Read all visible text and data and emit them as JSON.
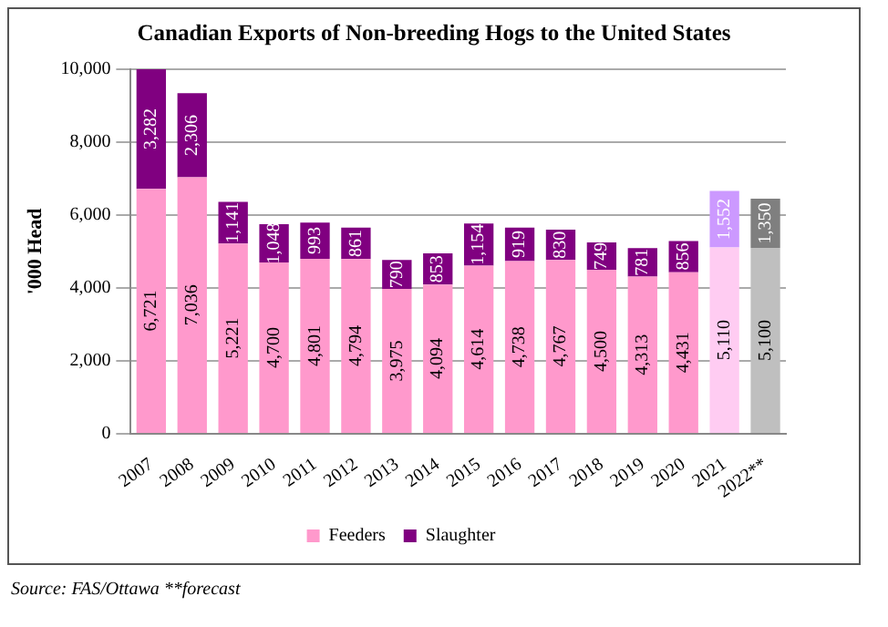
{
  "chart_data": {
    "type": "bar",
    "title": "Canadian Exports of Non-breeding Hogs to the United States",
    "ylabel": "'000 Head",
    "categories": [
      "2007",
      "2008",
      "2009",
      "2010",
      "2011",
      "2012",
      "2013",
      "2014",
      "2015",
      "2016",
      "2017",
      "2018",
      "2019",
      "2020",
      "2021",
      "2022**"
    ],
    "stacked": true,
    "series": [
      {
        "name": "Feeders",
        "color": "#ff99cc",
        "colors": [
          "#ff99cc",
          "#ff99cc",
          "#ff99cc",
          "#ff99cc",
          "#ff99cc",
          "#ff99cc",
          "#ff99cc",
          "#ff99cc",
          "#ff99cc",
          "#ff99cc",
          "#ff99cc",
          "#ff99cc",
          "#ff99cc",
          "#ff99cc",
          "#ffccf2",
          "#bfbfbf"
        ],
        "values": [
          6721,
          7036,
          5221,
          4700,
          4801,
          4794,
          3975,
          4094,
          4614,
          4738,
          4767,
          4500,
          4313,
          4431,
          5110,
          5100
        ],
        "value_labels": [
          "6,721",
          "7,036",
          "5,221",
          "4,700",
          "4,801",
          "4,794",
          "3,975",
          "4,094",
          "4,614",
          "4,738",
          "4,767",
          "4,500",
          "4,313",
          "4,431",
          "5,110",
          "5,100"
        ]
      },
      {
        "name": "Slaughter",
        "color": "#800080",
        "colors": [
          "#800080",
          "#800080",
          "#800080",
          "#800080",
          "#800080",
          "#800080",
          "#800080",
          "#800080",
          "#800080",
          "#800080",
          "#800080",
          "#800080",
          "#800080",
          "#800080",
          "#cc99ff",
          "#7f7f7f"
        ],
        "values": [
          3282,
          2306,
          1141,
          1048,
          993,
          861,
          790,
          853,
          1154,
          919,
          830,
          749,
          781,
          856,
          1552,
          1350
        ],
        "value_labels": [
          "3,282",
          "2,306",
          "1,141",
          "1,048",
          "993",
          "861",
          "790",
          "853",
          "1,154",
          "919",
          "830",
          "749",
          "781",
          "856",
          "1,552",
          "1,350"
        ]
      }
    ],
    "ylim": [
      0,
      10000
    ],
    "yticks": [
      0,
      {
        "value": 2000,
        "label": "2,000"
      },
      {
        "value": 4000,
        "label": "4,000"
      },
      {
        "value": 6000,
        "label": "6,000"
      },
      {
        "value": 8000,
        "label": "8,000"
      },
      {
        "value": 10000,
        "label": "10,000"
      }
    ],
    "grid": "y",
    "legend": "bottom",
    "annotations": [
      "Source: FAS/Ottawa **forecast"
    ]
  }
}
